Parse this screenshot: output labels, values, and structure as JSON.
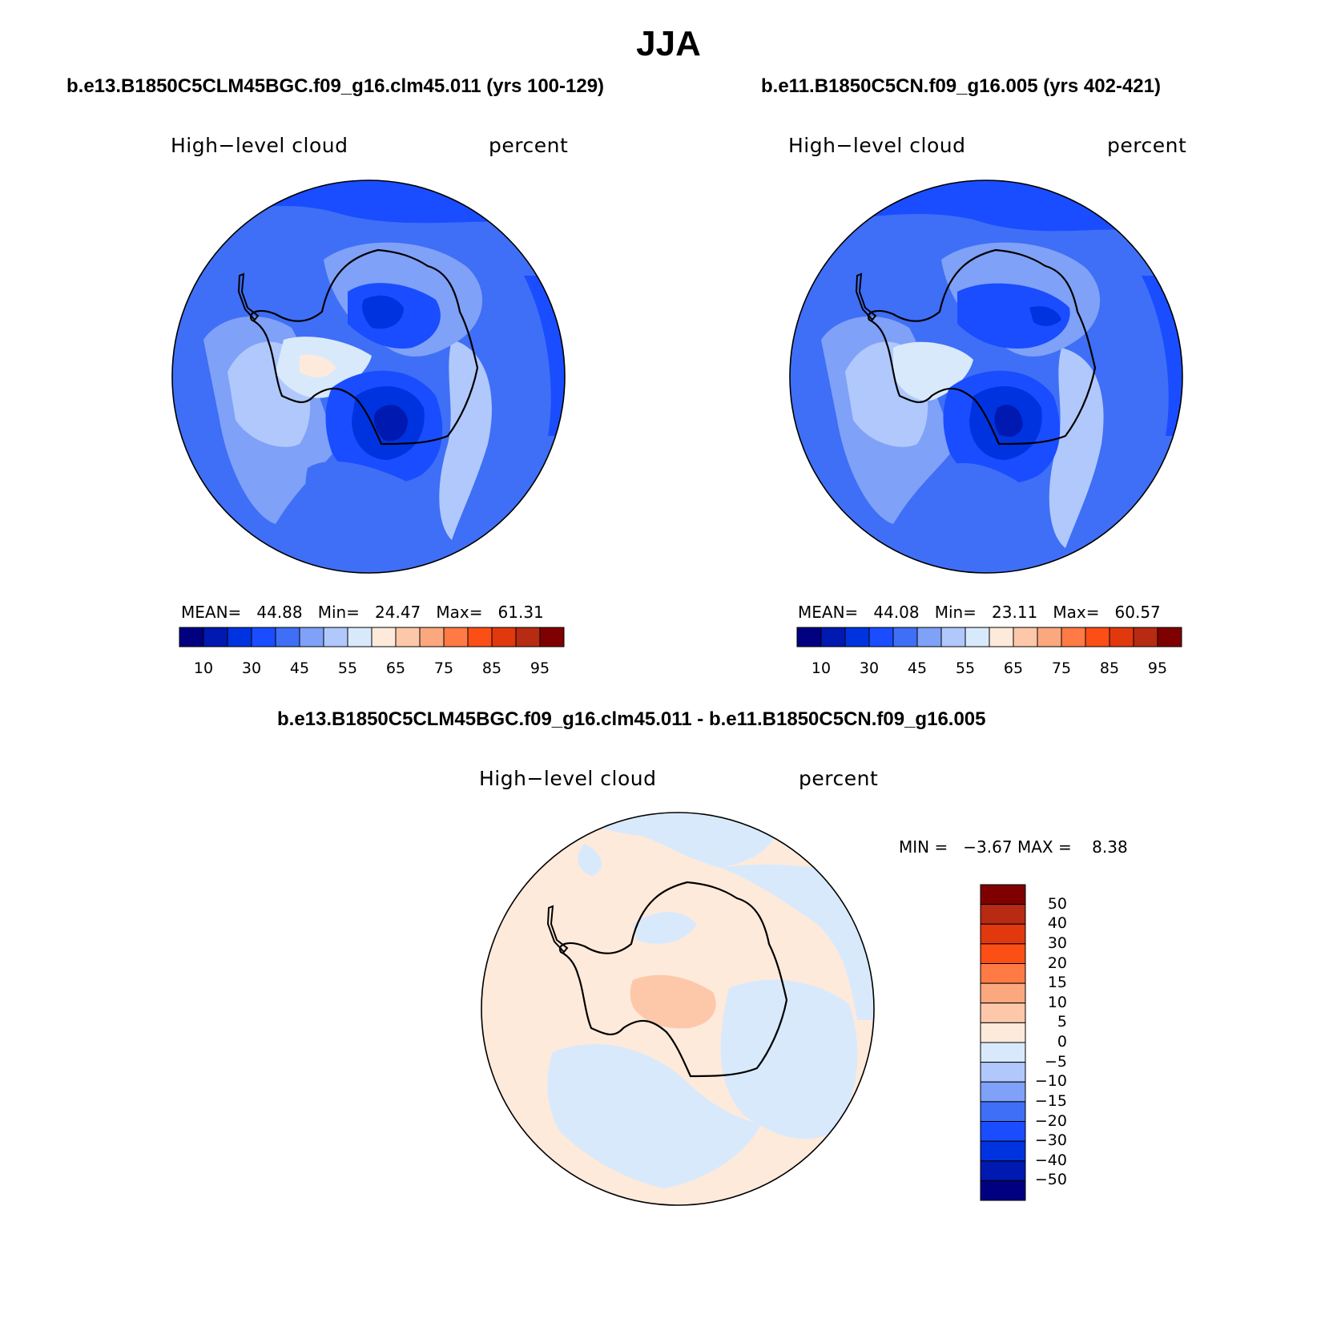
{
  "title": "JJA",
  "palette": [
    "#000080",
    "#0019b0",
    "#0033e0",
    "#1a4dff",
    "#3f6ff6",
    "#7fa1f7",
    "#b0c8fb",
    "#d8e9fc",
    "#feeadb",
    "#fdc8aa",
    "#fca87f",
    "#ff7a45",
    "#fb4f16",
    "#e1380d",
    "#b62b12",
    "#7f0000"
  ],
  "panel_left": {
    "case": "b.e13.B1850C5CLM45BGC.f09_g16.clm45.011 (yrs 100-129)",
    "variable": "High−level cloud",
    "units": "percent",
    "stats": "MEAN=   44.88   Min=   24.47   Max=   61.31",
    "colorbar_ticks": [
      "10",
      "30",
      "45",
      "55",
      "65",
      "75",
      "85",
      "95"
    ]
  },
  "panel_right": {
    "case": "b.e11.B1850C5CN.f09_g16.005 (yrs 402-421)",
    "variable": "High−level cloud",
    "units": "percent",
    "stats": "MEAN=   44.08   Min=   23.11   Max=   60.57",
    "colorbar_ticks": [
      "10",
      "30",
      "45",
      "55",
      "65",
      "75",
      "85",
      "95"
    ]
  },
  "panel_diff": {
    "case": "b.e13.B1850C5CLM45BGC.f09_g16.clm45.011 - b.e11.B1850C5CN.f09_g16.005",
    "variable": "High−level cloud",
    "units": "percent",
    "stats": "MIN =   −3.67 MAX =    8.38",
    "colorbar_ticks": [
      "50",
      "40",
      "30",
      "20",
      "15",
      "10",
      "5",
      "0",
      "−5",
      "−10",
      "−15",
      "−20",
      "−30",
      "−40",
      "−50"
    ]
  }
}
